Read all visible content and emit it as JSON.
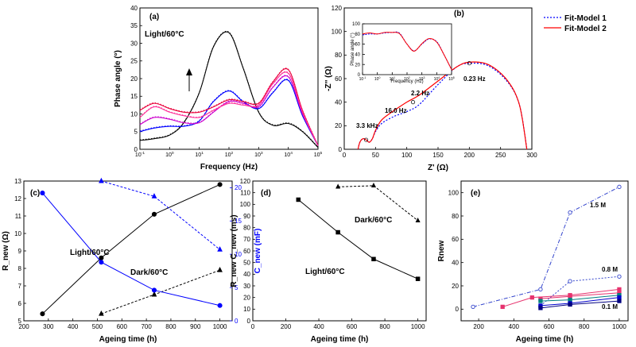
{
  "chart_data": [
    {
      "id": "a",
      "type": "line",
      "panel_label": "(a)",
      "annotation": "Light/60°C",
      "xlabel": "Frequency (Hz)",
      "ylabel": "Phase angle (°)",
      "xscale": "log",
      "xlim": [
        0.1,
        100000
      ],
      "ylim": [
        0,
        40
      ],
      "xticks": [
        {
          "v": 0.1,
          "b": "10",
          "e": "-1"
        },
        {
          "v": 1,
          "b": "10",
          "e": "0"
        },
        {
          "v": 10,
          "b": "10",
          "e": "1"
        },
        {
          "v": 100,
          "b": "10",
          "e": "2"
        },
        {
          "v": 1000,
          "b": "10",
          "e": "3"
        },
        {
          "v": 10000,
          "b": "10",
          "e": "4"
        },
        {
          "v": 100000,
          "b": "10",
          "e": "5"
        }
      ],
      "yticks": [
        0,
        5,
        10,
        15,
        20,
        25,
        30,
        35,
        40
      ],
      "series": [
        {
          "name": "black",
          "color": "#000000",
          "x": [
            0.1,
            0.3,
            1,
            3,
            10,
            30,
            100,
            300,
            1000,
            3000,
            10000,
            30000,
            100000
          ],
          "y": [
            2.5,
            3,
            4,
            7.5,
            16,
            29,
            33,
            23,
            10.5,
            6.8,
            7.3,
            5,
            0.5
          ]
        },
        {
          "name": "blue",
          "color": "#0000ff",
          "x": [
            0.1,
            0.3,
            1,
            3,
            10,
            30,
            100,
            300,
            1000,
            3000,
            10000,
            30000,
            100000
          ],
          "y": [
            5,
            6,
            6.5,
            6.5,
            8,
            13.5,
            16.5,
            13.5,
            11.5,
            16,
            19.5,
            9.5,
            1
          ]
        },
        {
          "name": "purple",
          "color": "#cc00cc",
          "x": [
            0.1,
            0.3,
            1,
            3,
            10,
            30,
            100,
            300,
            1000,
            3000,
            10000,
            30000,
            100000
          ],
          "y": [
            7,
            9,
            8.5,
            7.5,
            7.5,
            10.5,
            13.5,
            13,
            12,
            17.5,
            20.5,
            10,
            1
          ]
        },
        {
          "name": "red",
          "color": "#e8003a",
          "x": [
            0.1,
            0.3,
            1,
            3,
            10,
            30,
            100,
            300,
            1000,
            3000,
            10000,
            30000,
            100000
          ],
          "y": [
            11,
            13,
            11.5,
            10.5,
            10.5,
            12,
            14,
            13.5,
            13,
            19,
            22.5,
            11,
            1
          ]
        },
        {
          "name": "pink",
          "color": "#ff3399",
          "x": [
            0.1,
            0.3,
            1,
            3,
            10,
            30,
            100,
            300,
            1000,
            3000,
            10000,
            30000,
            100000
          ],
          "y": [
            9,
            12,
            10.5,
            9.5,
            9,
            11,
            13,
            12.5,
            12.5,
            18.5,
            21.5,
            10.5,
            1
          ]
        }
      ]
    },
    {
      "id": "b",
      "type": "line",
      "panel_label": "(b)",
      "xlabel": "Z' (Ω)",
      "ylabel": "-Z'' (Ω)",
      "xlim": [
        0,
        300
      ],
      "ylim": [
        0,
        120
      ],
      "xticks": [
        0,
        50,
        100,
        150,
        200,
        250,
        300
      ],
      "yticks": [
        0,
        20,
        40,
        60,
        80,
        100,
        120
      ],
      "legend": [
        "Fit-Model 1",
        "Fit-Model 2"
      ],
      "annotations": [
        "0.23 Hz",
        "2.2 Hz",
        "16.0 Hz",
        "3.3 kHz"
      ],
      "series": [
        {
          "name": "Fit-Model 1",
          "color": "#0000ff",
          "x": [
            22,
            25,
            30,
            35,
            40,
            45,
            50,
            60,
            80,
            100,
            120,
            150,
            180,
            200,
            230,
            260,
            280,
            292
          ],
          "y": [
            0,
            6,
            9,
            8,
            6,
            9,
            15,
            22,
            28,
            32,
            38,
            55,
            70,
            73,
            71,
            58,
            38,
            0
          ]
        },
        {
          "name": "Fit-Model 2",
          "color": "#ff0000",
          "x": [
            22,
            25,
            30,
            35,
            40,
            45,
            50,
            60,
            80,
            100,
            120,
            150,
            180,
            200,
            230,
            260,
            280,
            292
          ],
          "y": [
            0,
            6,
            9,
            8,
            6,
            9,
            16,
            25,
            33,
            40,
            46,
            58,
            70,
            74,
            72,
            59,
            38,
            0
          ]
        }
      ],
      "inset": {
        "xlabel": "Frequency (Hz)",
        "ylabel": "Phase angle (°)",
        "xscale": "log",
        "xlim": [
          0.1,
          100000
        ],
        "ylim": [
          0,
          100
        ],
        "yticks": [
          0,
          20,
          40,
          60,
          80,
          100
        ],
        "xticks": [
          {
            "v": 0.1,
            "b": "10",
            "e": "-1"
          },
          {
            "v": 1,
            "b": "10",
            "e": "0"
          },
          {
            "v": 10,
            "b": "10",
            "e": "1"
          },
          {
            "v": 100,
            "b": "10",
            "e": "2"
          },
          {
            "v": 1000,
            "b": "10",
            "e": "3"
          },
          {
            "v": 10000,
            "b": "10",
            "e": "4"
          },
          {
            "v": 100000,
            "b": "10",
            "e": "5"
          }
        ],
        "series": [
          {
            "name": "blue",
            "color": "#0000ff",
            "x": [
              0.1,
              0.3,
              1,
              3,
              10,
              30,
              100,
              300,
              1000,
              3000,
              10000,
              30000,
              100000
            ],
            "y": [
              78,
              80,
              80,
              82,
              83,
              82,
              60,
              47,
              60,
              70,
              65,
              40,
              10
            ]
          },
          {
            "name": "red",
            "color": "#ff0000",
            "x": [
              0.1,
              0.3,
              1,
              3,
              10,
              30,
              100,
              300,
              1000,
              3000,
              10000,
              30000,
              100000
            ],
            "y": [
              80,
              82,
              80,
              83,
              83,
              81,
              60,
              46,
              61,
              71,
              64,
              40,
              10
            ]
          }
        ]
      }
    },
    {
      "id": "c",
      "type": "line",
      "panel_label": "(c)",
      "xlabel": "Ageing time (h)",
      "ylabel": "R_new (Ω)",
      "ylabel_right": "C_new (mF)",
      "xlim": [
        200,
        1050
      ],
      "ylim": [
        5,
        13
      ],
      "ylim_right": [
        0,
        21
      ],
      "xticks": [
        200,
        300,
        400,
        500,
        600,
        700,
        800,
        900,
        1000
      ],
      "yticks": [
        5,
        6,
        7,
        8,
        9,
        10,
        11,
        12,
        13
      ],
      "yticks_right": [
        0,
        5,
        10,
        15,
        20
      ],
      "annotations": [
        "Light/60°C",
        "Dark/60°C"
      ],
      "series": [
        {
          "name": "R Light",
          "axis": "left",
          "color": "#000000",
          "marker": "circle",
          "x": [
            276,
            516,
            732,
            1000
          ],
          "y": [
            5.4,
            8.6,
            11.1,
            12.8
          ]
        },
        {
          "name": "R Dark",
          "axis": "left",
          "color": "#000000",
          "marker": "triangle",
          "dashed": true,
          "x": [
            516,
            732,
            1000
          ],
          "y": [
            5.4,
            6.5,
            7.9
          ]
        },
        {
          "name": "C Light",
          "axis": "right",
          "color": "#0000ff",
          "marker": "circle",
          "x": [
            276,
            516,
            732,
            1000
          ],
          "y": [
            19.2,
            8.8,
            4.6,
            2.3
          ]
        },
        {
          "name": "C Dark",
          "axis": "right",
          "color": "#0000ff",
          "marker": "triangle",
          "dashed": true,
          "x": [
            516,
            732,
            1000
          ],
          "y": [
            21,
            18.7,
            10.7
          ]
        }
      ]
    },
    {
      "id": "d",
      "type": "line",
      "panel_label": "(d)",
      "xlabel": "Ageing time (h)",
      "ylabel": "R_new C_new (ms)",
      "xlim": [
        0,
        1050
      ],
      "ylim": [
        0,
        120
      ],
      "xticks": [
        0,
        200,
        400,
        600,
        800,
        1000
      ],
      "yticks": [
        0,
        10,
        20,
        30,
        40,
        50,
        60,
        70,
        80,
        90,
        100,
        110,
        120
      ],
      "annotations": [
        "Dark/60°C",
        "Light/60°C"
      ],
      "series": [
        {
          "name": "Light",
          "color": "#000000",
          "marker": "square",
          "x": [
            276,
            516,
            732,
            1000
          ],
          "y": [
            104,
            76,
            53,
            36
          ]
        },
        {
          "name": "Dark",
          "color": "#000000",
          "marker": "triangle",
          "dashed": true,
          "x": [
            516,
            732,
            1000
          ],
          "y": [
            115,
            116,
            86
          ]
        }
      ]
    },
    {
      "id": "e",
      "type": "line",
      "panel_label": "(e)",
      "xlabel": "Ageing time (h)",
      "ylabel": "Rnew",
      "xlim": [
        100,
        1050
      ],
      "ylim": [
        -10,
        110
      ],
      "xticks": [
        200,
        400,
        600,
        800,
        1000
      ],
      "yticks": [
        0,
        20,
        40,
        60,
        80,
        100
      ],
      "annotations": [
        "1.5 M",
        "0.8 M",
        "0.1 M"
      ],
      "series": [
        {
          "name": "1.5 M",
          "color": "#3344cc",
          "marker": "circle",
          "dashed": true,
          "x": [
            168,
            552,
            720,
            1000
          ],
          "y": [
            2,
            17,
            83,
            105
          ]
        },
        {
          "name": "0.8 M",
          "color": "#3344cc",
          "marker": "circle",
          "dashed": true,
          "x": [
            552,
            720,
            1000
          ],
          "y": [
            3,
            24,
            28
          ]
        },
        {
          "name": "pink 1",
          "color": "#e6336e",
          "marker": "square",
          "x": [
            336,
            504,
            720,
            1000
          ],
          "y": [
            2,
            10,
            12,
            17
          ]
        },
        {
          "name": "pink 2",
          "color": "#e6336e",
          "marker": "square",
          "x": [
            552,
            720,
            1000
          ],
          "y": [
            9,
            11,
            14
          ]
        },
        {
          "name": "teal",
          "color": "#008080",
          "marker": "square",
          "x": [
            552,
            720,
            1000
          ],
          "y": [
            7,
            8,
            12
          ]
        },
        {
          "name": "blue dark",
          "color": "#0000cc",
          "marker": "square",
          "x": [
            552,
            720,
            1000
          ],
          "y": [
            3,
            5,
            10
          ]
        },
        {
          "name": "navy",
          "color": "#000080",
          "marker": "square",
          "x": [
            552,
            720,
            1000
          ],
          "y": [
            1,
            4,
            7
          ]
        }
      ]
    }
  ]
}
